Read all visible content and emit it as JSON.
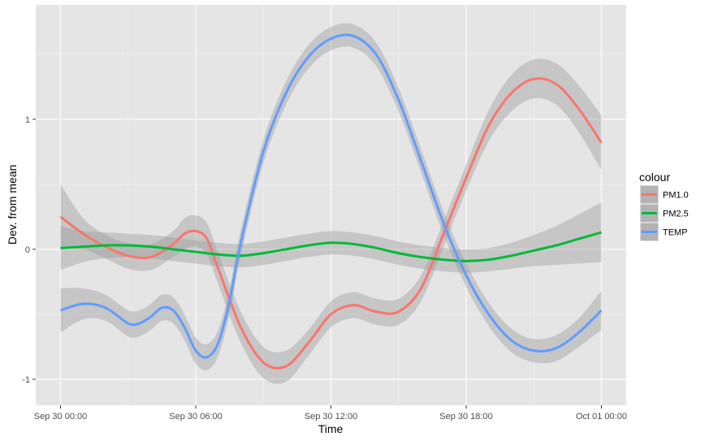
{
  "chart_data": {
    "type": "line",
    "xlabel": "Time",
    "ylabel": "Dev. from mean",
    "x_ticks": [
      "Sep 30 00:00",
      "Sep 30 06:00",
      "Sep 30 12:00",
      "Sep 30 18:00",
      "Oct 01 00:00"
    ],
    "x_hours": [
      0,
      6,
      12,
      18,
      24
    ],
    "xlim": [
      -1.1,
      25.1
    ],
    "y_ticks": [
      -1,
      0,
      1
    ],
    "y_tick_labels": [
      "-1",
      "0",
      "1"
    ],
    "ylim": [
      -1.2,
      1.88
    ],
    "grid": true,
    "legend": {
      "title": "colour",
      "placement": "right"
    },
    "series": [
      {
        "name": "PM1.0",
        "color": "#F8766D",
        "x": [
          0,
          1,
          2,
          3,
          4,
          5,
          5.5,
          6,
          6.5,
          7,
          8,
          9,
          10,
          11,
          12,
          13,
          14,
          15,
          16,
          17,
          18,
          19,
          20,
          21,
          22,
          23,
          24
        ],
        "y": [
          0.25,
          0.12,
          0.02,
          -0.05,
          -0.06,
          0.04,
          0.12,
          0.14,
          0.08,
          -0.15,
          -0.6,
          -0.87,
          -0.9,
          -0.72,
          -0.5,
          -0.43,
          -0.48,
          -0.48,
          -0.3,
          0.12,
          0.55,
          0.95,
          1.2,
          1.31,
          1.27,
          1.08,
          0.82
        ],
        "band": [
          0.25,
          0.12,
          0.09,
          0.1,
          0.1,
          0.1,
          0.12,
          0.12,
          0.12,
          0.12,
          0.12,
          0.12,
          0.12,
          0.1,
          0.1,
          0.1,
          0.1,
          0.1,
          0.1,
          0.1,
          0.1,
          0.12,
          0.14,
          0.15,
          0.16,
          0.18,
          0.21
        ]
      },
      {
        "name": "PM2.5",
        "color": "#00BA38",
        "x": [
          0,
          1,
          2,
          3,
          4,
          5,
          6,
          7,
          8,
          9,
          10,
          11,
          12,
          13,
          14,
          15,
          16,
          17,
          18,
          19,
          20,
          21,
          22,
          23,
          24
        ],
        "y": [
          0.01,
          0.02,
          0.03,
          0.03,
          0.02,
          0.0,
          -0.02,
          -0.04,
          -0.05,
          -0.03,
          0.0,
          0.03,
          0.05,
          0.04,
          0.01,
          -0.03,
          -0.06,
          -0.08,
          -0.09,
          -0.08,
          -0.05,
          -0.01,
          0.03,
          0.08,
          0.13
        ],
        "band": [
          0.17,
          0.12,
          0.1,
          0.09,
          0.09,
          0.09,
          0.09,
          0.09,
          0.09,
          0.09,
          0.09,
          0.09,
          0.09,
          0.09,
          0.09,
          0.09,
          0.09,
          0.09,
          0.09,
          0.09,
          0.1,
          0.12,
          0.15,
          0.19,
          0.23
        ]
      },
      {
        "name": "TEMP",
        "color": "#619CFF",
        "x": [
          0,
          1,
          2,
          3,
          3.5,
          4,
          4.5,
          5,
          5.5,
          6,
          6.5,
          7,
          7.5,
          8,
          9,
          10,
          11,
          12,
          13,
          14,
          15,
          16,
          17,
          18,
          19,
          20,
          21,
          22,
          23,
          24
        ],
        "y": [
          -0.47,
          -0.42,
          -0.45,
          -0.57,
          -0.57,
          -0.52,
          -0.45,
          -0.47,
          -0.6,
          -0.78,
          -0.83,
          -0.72,
          -0.4,
          0.05,
          0.75,
          1.2,
          1.48,
          1.62,
          1.64,
          1.5,
          1.15,
          0.68,
          0.2,
          -0.2,
          -0.5,
          -0.7,
          -0.78,
          -0.76,
          -0.64,
          -0.47
        ],
        "band": [
          0.17,
          0.12,
          0.1,
          0.1,
          0.1,
          0.1,
          0.1,
          0.1,
          0.1,
          0.1,
          0.1,
          0.1,
          0.1,
          0.1,
          0.09,
          0.09,
          0.09,
          0.09,
          0.09,
          0.09,
          0.09,
          0.09,
          0.09,
          0.09,
          0.09,
          0.09,
          0.09,
          0.1,
          0.11,
          0.15
        ]
      }
    ]
  }
}
